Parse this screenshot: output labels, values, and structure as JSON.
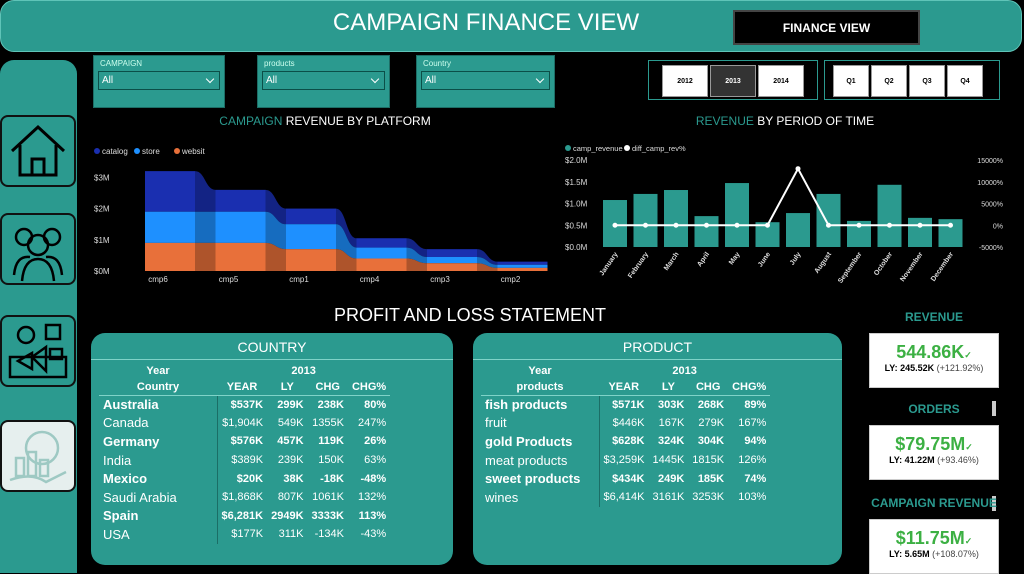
{
  "header": {
    "title": "CAMPAIGN FINANCE VIEW",
    "button": "FINANCE VIEW"
  },
  "filters": [
    {
      "label": "CAMPAIGN",
      "value": "All"
    },
    {
      "label": "products",
      "value": "All"
    },
    {
      "label": "Country",
      "value": "All"
    }
  ],
  "year_slicer": [
    {
      "label": "2012",
      "selected": false
    },
    {
      "label": "2013",
      "selected": true
    },
    {
      "label": "2014",
      "selected": false
    }
  ],
  "quarter_slicer": [
    "Q1",
    "Q2",
    "Q3",
    "Q4"
  ],
  "ribbon_chart": {
    "type": "ribbon",
    "title_highlight": "CAMPAIGN",
    "title": "REVENUE  BY PLATFORM",
    "categories": [
      "cmp6",
      "cmp5",
      "cmp1",
      "cmp4",
      "cmp3",
      "cmp2"
    ],
    "series": [
      {
        "name": "catalog",
        "color": "#1a2fb0",
        "values": [
          1300000,
          700000,
          500000,
          300000,
          250000,
          100000
        ]
      },
      {
        "name": "store",
        "color": "#1e90ff",
        "values": [
          1000000,
          1000000,
          800000,
          350000,
          200000,
          100000
        ]
      },
      {
        "name": "websit",
        "color": "#e8703a",
        "values": [
          900000,
          900000,
          700000,
          400000,
          250000,
          100000
        ]
      }
    ],
    "ylim": [
      0,
      3300000
    ],
    "yticks": [
      {
        "value": 0,
        "label": "$0M"
      },
      {
        "value": 1000000,
        "label": "$1M"
      },
      {
        "value": 2000000,
        "label": "$2M"
      },
      {
        "value": 3000000,
        "label": "$3M"
      }
    ]
  },
  "period_chart": {
    "type": "bar_line",
    "title_highlight": "REVENUE",
    "title": "BY PERIOD OF TIME",
    "categories": [
      "January",
      "February",
      "March",
      "April",
      "May",
      "June",
      "July",
      "August",
      "September",
      "October",
      "November",
      "December"
    ],
    "series": [
      {
        "name": "camp_revenue",
        "color": "#2b9a8f",
        "values": [
          1080000,
          1220000,
          1310000,
          710000,
          1470000,
          570000,
          780000,
          1220000,
          600000,
          1430000,
          670000,
          640000
        ]
      },
      {
        "name": "diff_camp_rev%",
        "color": "#ffffff",
        "axis": "y2",
        "values": [
          0,
          0,
          0,
          0,
          0,
          0,
          13000,
          0,
          0,
          0,
          0,
          0
        ]
      }
    ],
    "ylim": [
      0,
      2000000
    ],
    "yticks": [
      {
        "value": 0,
        "label": "$0.0M"
      },
      {
        "value": 500000,
        "label": "$0.5M"
      },
      {
        "value": 1000000,
        "label": "$1.0M"
      },
      {
        "value": 1500000,
        "label": "$1.5M"
      },
      {
        "value": 2000000,
        "label": "$2.0M"
      }
    ],
    "y2lim": [
      -5000,
      15000
    ],
    "y2ticks": [
      {
        "value": -5000,
        "label": "-5000%"
      },
      {
        "value": 0,
        "label": "0%"
      },
      {
        "value": 5000,
        "label": "5000%"
      },
      {
        "value": 10000,
        "label": "10000%"
      },
      {
        "value": 15000,
        "label": "15000%"
      }
    ]
  },
  "section_title": "PROFIT AND LOSS STATEMENT",
  "country_table": {
    "title": "COUNTRY",
    "year_label": "Year",
    "year": "2013",
    "row_header": "Country",
    "columns": [
      "YEAR",
      "LY",
      "CHG",
      "CHG%"
    ],
    "rows": [
      [
        "Australia",
        "$537K",
        "299K",
        "238K",
        "80%"
      ],
      [
        "Canada",
        "$1,904K",
        "549K",
        "1355K",
        "247%"
      ],
      [
        "Germany",
        "$576K",
        "457K",
        "119K",
        "26%"
      ],
      [
        "India",
        "$389K",
        "239K",
        "150K",
        "63%"
      ],
      [
        "Mexico",
        "$20K",
        "38K",
        "-18K",
        "-48%"
      ],
      [
        "Saudi Arabia",
        "$1,868K",
        "807K",
        "1061K",
        "132%"
      ],
      [
        "Spain",
        "$6,281K",
        "2949K",
        "3333K",
        "113%"
      ],
      [
        "USA",
        "$177K",
        "311K",
        "-134K",
        "-43%"
      ]
    ]
  },
  "product_table": {
    "title": "PRODUCT",
    "year_label": "Year",
    "year": "2013",
    "row_header": "products",
    "columns": [
      "YEAR",
      "LY",
      "CHG",
      "CHG%"
    ],
    "rows": [
      [
        "fish products",
        "$571K",
        "303K",
        "268K",
        "89%"
      ],
      [
        "fruit",
        "$446K",
        "167K",
        "279K",
        "167%"
      ],
      [
        "gold Products",
        "$628K",
        "324K",
        "304K",
        "94%"
      ],
      [
        "meat products",
        "$3,259K",
        "1445K",
        "1815K",
        "126%"
      ],
      [
        "sweet products",
        "$434K",
        "249K",
        "185K",
        "74%"
      ],
      [
        "wines",
        "$6,414K",
        "3161K",
        "3253K",
        "103%"
      ]
    ]
  },
  "kpis": [
    {
      "title": "REVENUE",
      "value": "544.86K",
      "ly": "LY: 245.52K",
      "change": "(+121.92%)"
    },
    {
      "title": "ORDERS",
      "value": "$79.75M",
      "ly": "LY: 41.22M",
      "change": "(+93.46%)"
    },
    {
      "title": "CAMPAIGN REVENUE",
      "value": "$11.75M",
      "ly": "LY: 5.65M",
      "change": "(+108.07%)"
    }
  ]
}
